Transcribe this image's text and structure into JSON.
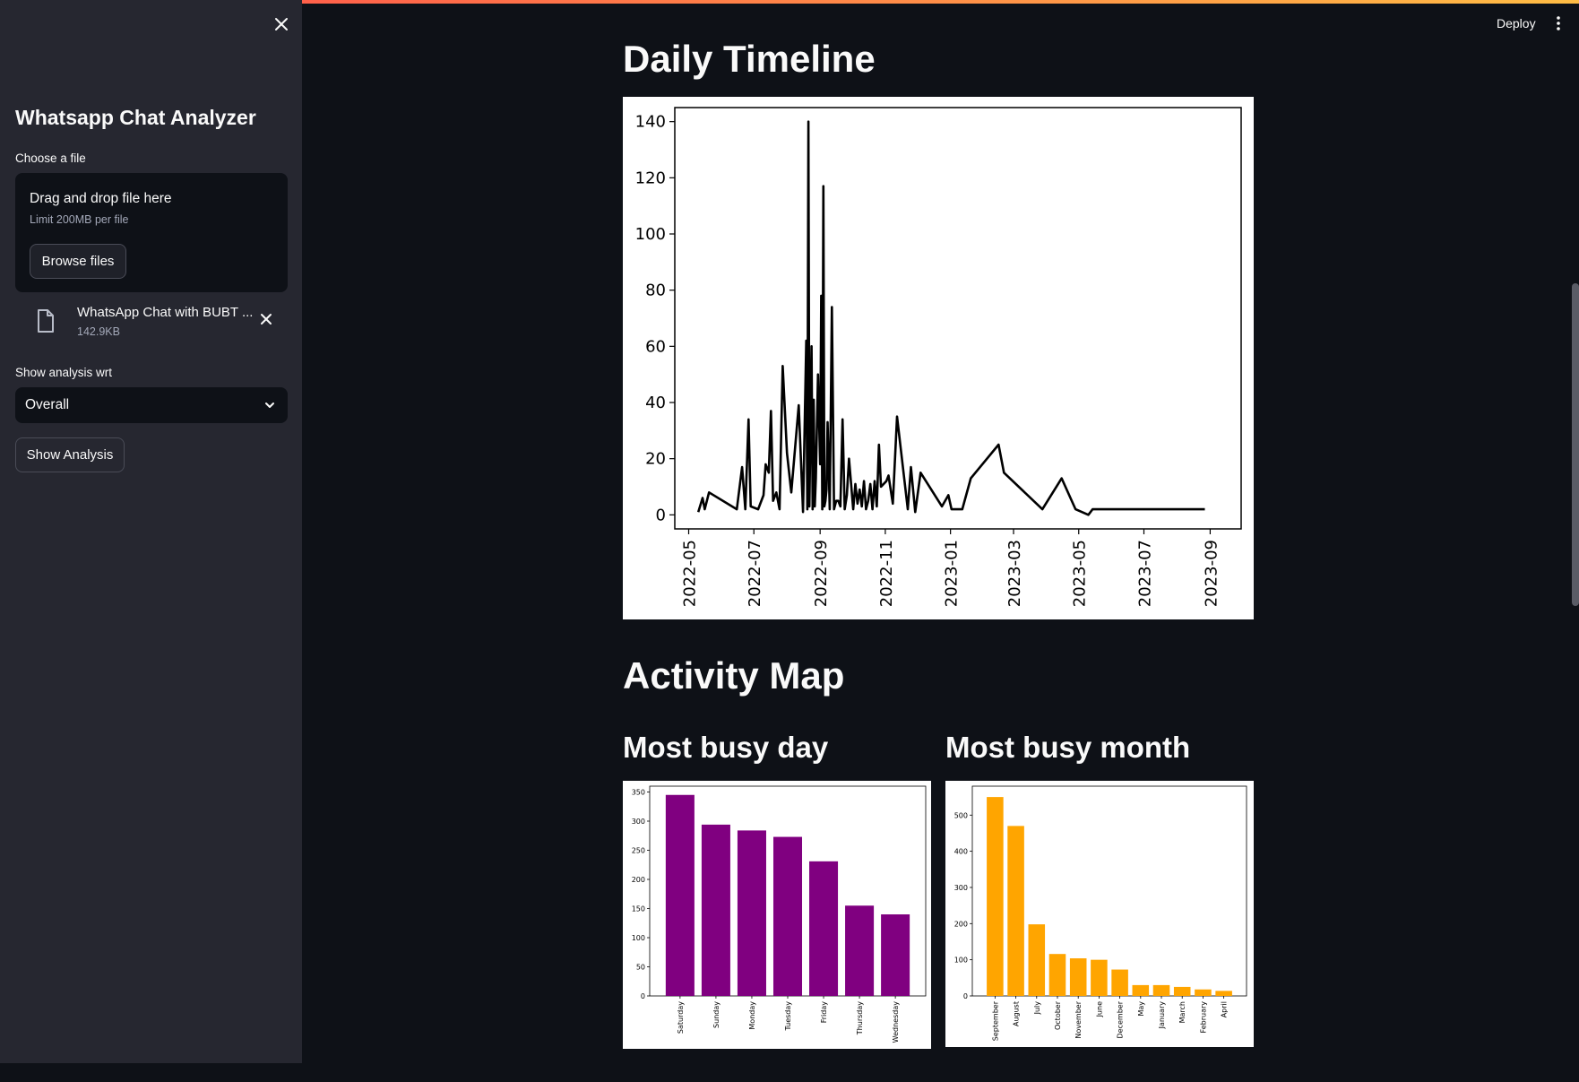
{
  "sidebar": {
    "title": "Whatsapp Chat Analyzer",
    "file_label": "Choose a file",
    "dropzone": {
      "title": "Drag and drop file here",
      "limit": "Limit 200MB per file",
      "browse_label": "Browse files"
    },
    "uploaded_file": {
      "name": "WhatsApp Chat with BUBT ...",
      "size": "142.9KB"
    },
    "analysis_label": "Show analysis wrt",
    "analysis_selected": "Overall",
    "show_button": "Show Analysis"
  },
  "header": {
    "deploy_label": "Deploy"
  },
  "main": {
    "daily_title": "Daily Timeline",
    "activity_title": "Activity Map",
    "busy_day_title": "Most busy day",
    "busy_month_title": "Most busy month"
  },
  "chart_data": [
    {
      "type": "line",
      "xaxis": "date",
      "x": [
        "2022-05-10",
        "2022-05-14",
        "2022-05-16",
        "2022-05-20",
        "2022-06-15",
        "2022-06-20",
        "2022-06-23",
        "2022-06-26",
        "2022-06-28",
        "2022-07-05",
        "2022-07-10",
        "2022-07-12",
        "2022-07-15",
        "2022-07-17",
        "2022-07-19",
        "2022-07-22",
        "2022-07-25",
        "2022-07-28",
        "2022-08-01",
        "2022-08-05",
        "2022-08-12",
        "2022-08-16",
        "2022-08-19",
        "2022-08-20",
        "2022-08-21",
        "2022-08-22",
        "2022-08-24",
        "2022-08-25",
        "2022-08-26",
        "2022-08-27",
        "2022-08-28",
        "2022-08-30",
        "2022-09-01",
        "2022-09-02",
        "2022-09-03",
        "2022-09-04",
        "2022-09-05",
        "2022-09-06",
        "2022-09-07",
        "2022-09-08",
        "2022-09-10",
        "2022-09-12",
        "2022-09-14",
        "2022-09-16",
        "2022-09-18",
        "2022-09-20",
        "2022-09-22",
        "2022-09-24",
        "2022-09-26",
        "2022-09-28",
        "2022-10-02",
        "2022-10-04",
        "2022-10-06",
        "2022-10-08",
        "2022-10-10",
        "2022-10-12",
        "2022-10-14",
        "2022-10-16",
        "2022-10-18",
        "2022-10-20",
        "2022-10-22",
        "2022-10-24",
        "2022-10-26",
        "2022-10-28",
        "2022-11-02",
        "2022-11-04",
        "2022-11-08",
        "2022-11-12",
        "2022-11-22",
        "2022-11-25",
        "2022-11-29",
        "2022-12-04",
        "2022-12-24",
        "2022-12-30",
        "2023-01-02",
        "2023-01-04",
        "2023-01-12",
        "2023-01-20",
        "2023-02-15",
        "2023-02-20",
        "2023-03-28",
        "2023-04-15",
        "2023-04-28",
        "2023-05-10",
        "2023-05-14",
        "2023-06-01",
        "2023-07-01",
        "2023-08-01",
        "2023-08-27"
      ],
      "y": [
        1,
        6,
        2,
        8,
        2,
        17,
        2,
        34,
        3,
        2,
        7,
        18,
        15,
        37,
        5,
        8,
        2,
        53,
        22,
        8,
        39,
        1,
        62,
        2,
        140,
        3,
        60,
        2,
        41,
        3,
        13,
        50,
        18,
        78,
        2,
        117,
        3,
        5,
        9,
        33,
        2,
        74,
        2,
        5,
        5,
        3,
        34,
        2,
        7,
        20,
        2,
        11,
        4,
        9,
        3,
        12,
        2,
        5,
        11,
        2,
        12,
        3,
        25,
        10,
        12,
        14,
        4,
        35,
        2,
        17,
        1,
        15,
        3,
        7,
        2,
        2,
        2,
        13,
        25,
        15,
        2,
        13,
        2,
        0,
        2,
        2,
        2,
        2,
        2
      ],
      "ylim": [
        -5,
        145
      ],
      "yticks": [
        0,
        20,
        40,
        60,
        80,
        100,
        120,
        140
      ],
      "xtick_labels": [
        "2022-05",
        "2022-07",
        "2022-09",
        "2022-11",
        "2023-01",
        "2023-03",
        "2023-05",
        "2023-07",
        "2023-09"
      ],
      "color": "#000000"
    },
    {
      "type": "bar",
      "categories": [
        "Saturday",
        "Sunday",
        "Monday",
        "Tuesday",
        "Friday",
        "Thursday",
        "Wednesday"
      ],
      "values": [
        345,
        294,
        284,
        273,
        231,
        155,
        140
      ],
      "ylim": [
        0,
        360
      ],
      "yticks": [
        0,
        50,
        100,
        150,
        200,
        250,
        300,
        350
      ],
      "color": "#800080"
    },
    {
      "type": "bar",
      "categories": [
        "September",
        "August",
        "July",
        "October",
        "November",
        "June",
        "December",
        "May",
        "January",
        "March",
        "February",
        "April"
      ],
      "values": [
        550,
        470,
        198,
        116,
        104,
        100,
        73,
        30,
        30,
        25,
        18,
        14
      ],
      "ylim": [
        0,
        580
      ],
      "yticks": [
        0,
        100,
        200,
        300,
        400,
        500
      ],
      "color": "#ffa500"
    }
  ]
}
